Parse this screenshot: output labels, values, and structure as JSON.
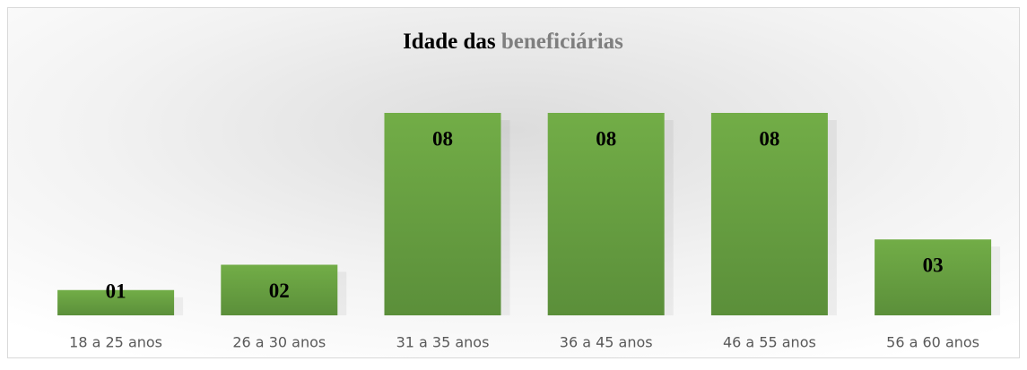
{
  "chart_data": {
    "type": "bar",
    "title": [
      "Idade das",
      "beneficiárias"
    ],
    "title_colors": [
      "#000000",
      "#7f7f7f"
    ],
    "categories": [
      "18 a 25 anos",
      "26 a 30 anos",
      "31 a 35 anos",
      "36 a 45 anos",
      "46 a 55 anos",
      "56 a 60 anos"
    ],
    "values": [
      1,
      2,
      8,
      8,
      8,
      3
    ],
    "value_labels": [
      "01",
      "02",
      "08",
      "08",
      "08",
      "03"
    ],
    "color": "#70ad47"
  }
}
